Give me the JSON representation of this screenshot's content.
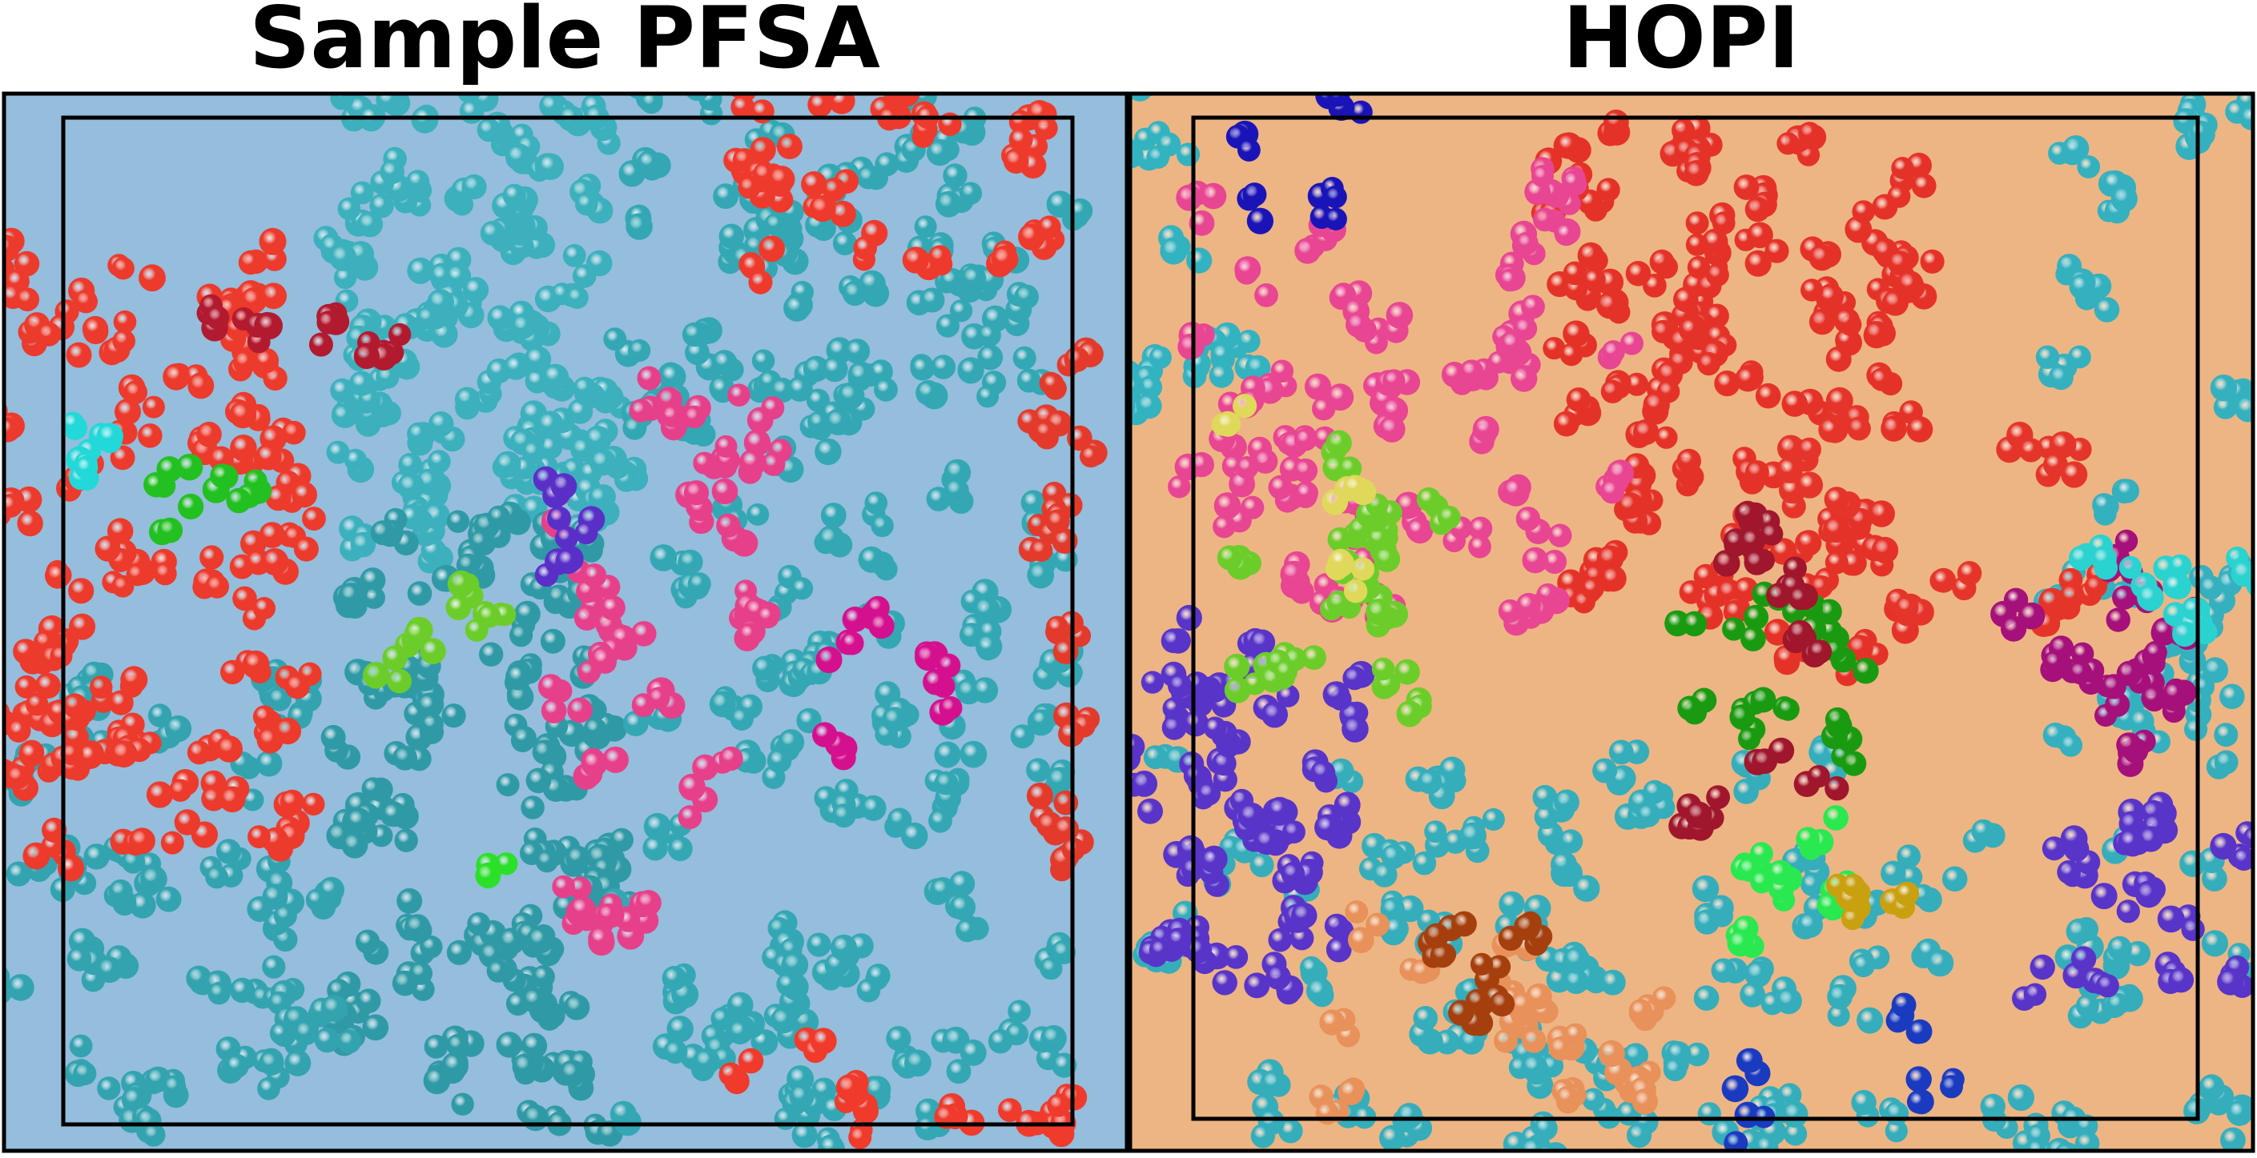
{
  "panels": [
    {
      "title": "Sample PFSA"
    },
    {
      "title": "HOPI"
    }
  ]
}
